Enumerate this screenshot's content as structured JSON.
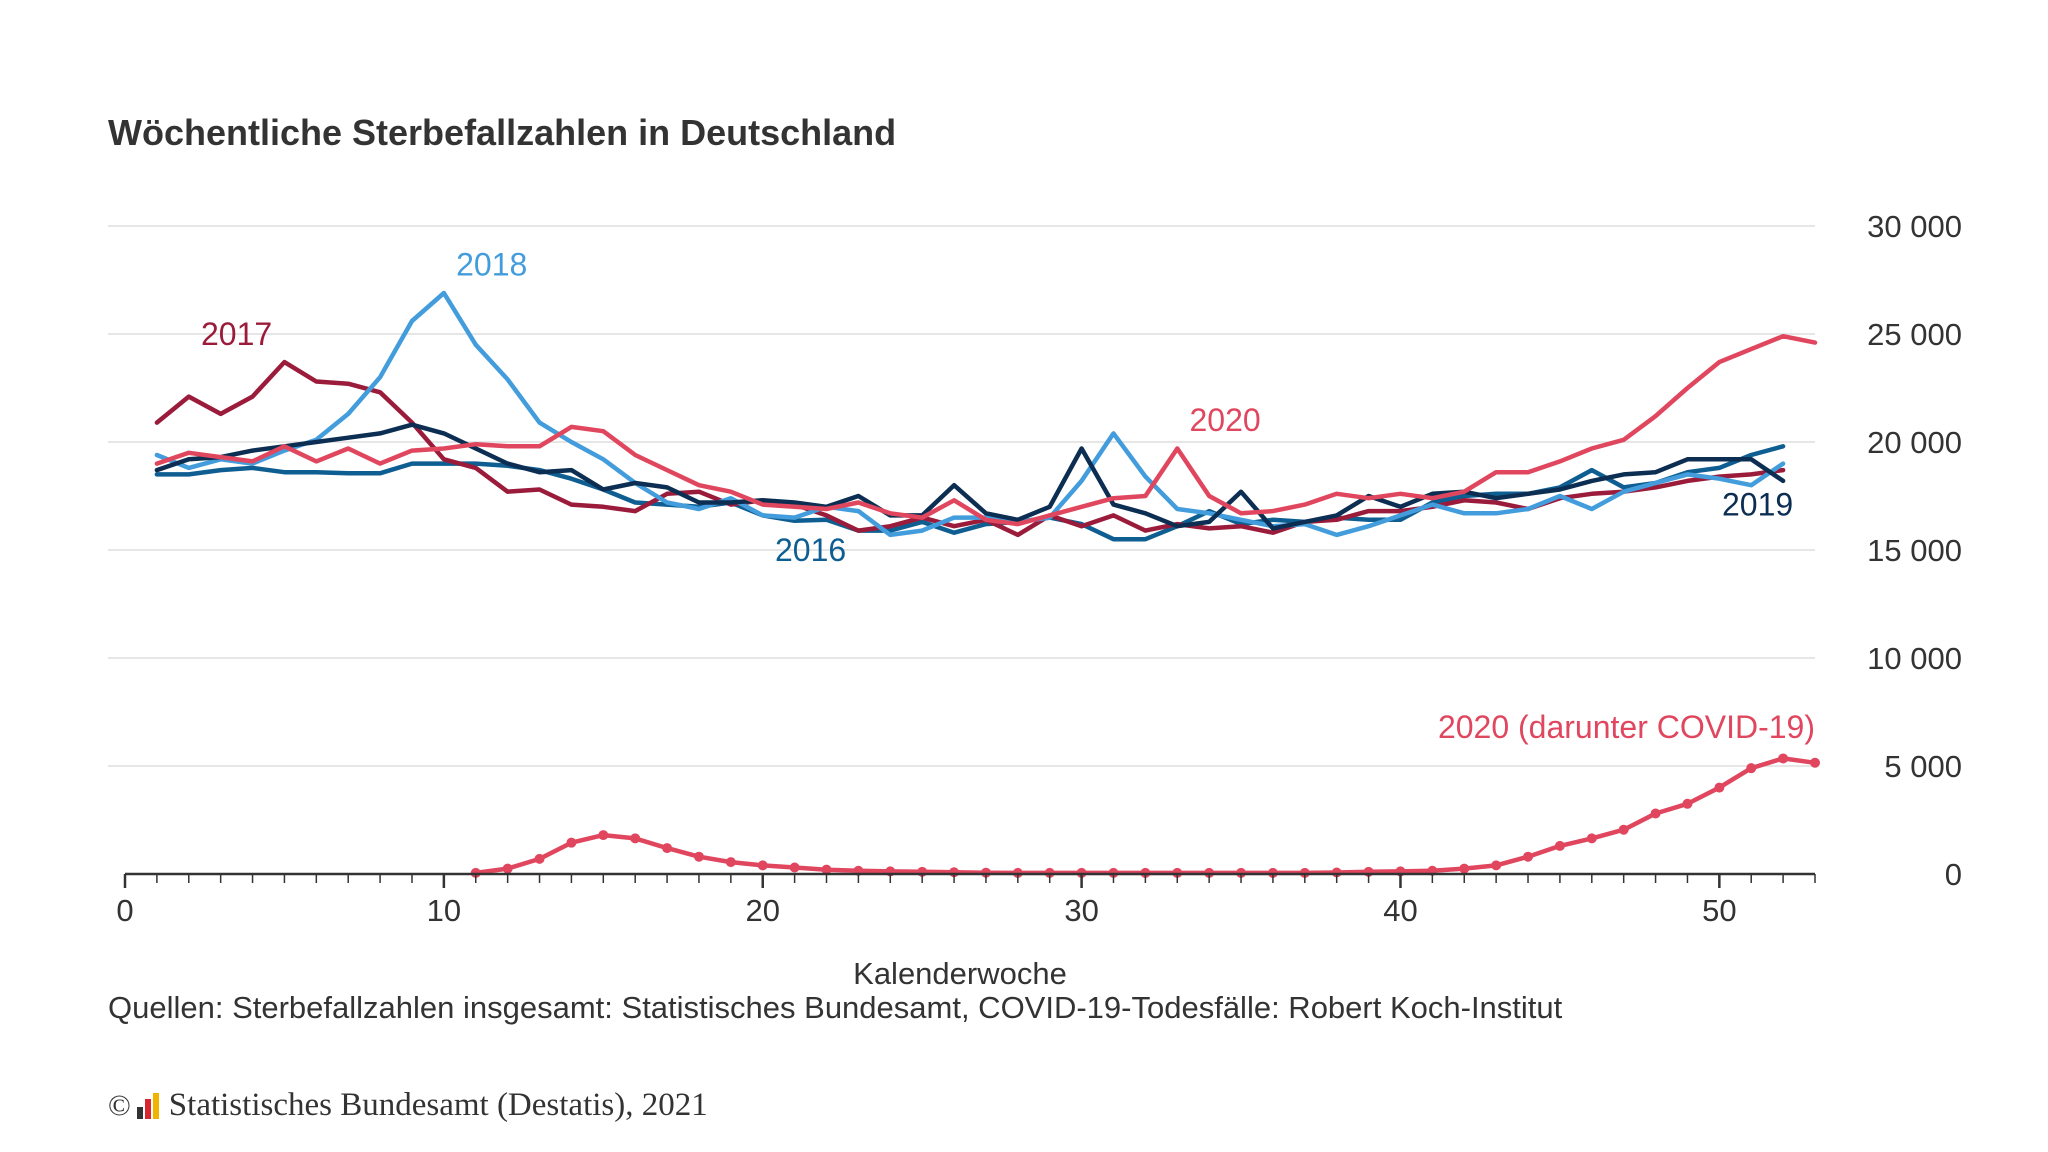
{
  "chart_data": {
    "type": "line",
    "title": "Wöchentliche Sterbefallzahlen in Deutschland",
    "xlabel": "Kalenderwoche",
    "ylabel": "",
    "xlim": [
      0,
      53
    ],
    "ylim": [
      0,
      30000
    ],
    "x_ticks": [
      {
        "value": 0,
        "label": "0"
      },
      {
        "value": 10,
        "label": "10"
      },
      {
        "value": 20,
        "label": "20"
      },
      {
        "value": 30,
        "label": "30"
      },
      {
        "value": 40,
        "label": "40"
      },
      {
        "value": 50,
        "label": "50"
      }
    ],
    "y_ticks": [
      {
        "value": 0,
        "label": "0"
      },
      {
        "value": 5000,
        "label": "5 000"
      },
      {
        "value": 10000,
        "label": "10 000"
      },
      {
        "value": 15000,
        "label": "15 000"
      },
      {
        "value": 20000,
        "label": "20 000"
      },
      {
        "value": 25000,
        "label": "25 000"
      },
      {
        "value": 30000,
        "label": "30 000"
      }
    ],
    "grid": true,
    "axis_color": "#333333",
    "grid_color": "#dddddd",
    "series": [
      {
        "name": "2016",
        "color": "#0f5e91",
        "label": {
          "x": 21.5,
          "y": 14500
        },
        "x": [
          1,
          2,
          3,
          4,
          5,
          6,
          7,
          8,
          9,
          10,
          11,
          12,
          13,
          14,
          15,
          16,
          17,
          18,
          19,
          20,
          21,
          22,
          23,
          24,
          25,
          26,
          27,
          28,
          29,
          30,
          31,
          32,
          33,
          34,
          35,
          36,
          37,
          38,
          39,
          40,
          41,
          42,
          43,
          44,
          45,
          46,
          47,
          48,
          49,
          50,
          51,
          52
        ],
        "values": [
          18500,
          18500,
          18700,
          18800,
          18600,
          18600,
          18550,
          18550,
          19000,
          19000,
          19000,
          18900,
          18700,
          18300,
          17800,
          17200,
          17100,
          17000,
          17200,
          16600,
          16350,
          16400,
          15900,
          15900,
          16300,
          15800,
          16200,
          16300,
          16500,
          16200,
          15500,
          15500,
          16100,
          16800,
          16200,
          16400,
          16300,
          16500,
          16400,
          16400,
          17200,
          17500,
          17600,
          17600,
          17900,
          18700,
          17900,
          18100,
          18600,
          18800,
          19400,
          19800
        ]
      },
      {
        "name": "2017",
        "color": "#9b1b3b",
        "label": {
          "x": 3.5,
          "y": 24500
        },
        "x": [
          1,
          2,
          3,
          4,
          5,
          6,
          7,
          8,
          9,
          10,
          11,
          12,
          13,
          14,
          15,
          16,
          17,
          18,
          19,
          20,
          21,
          22,
          23,
          24,
          25,
          26,
          27,
          28,
          29,
          30,
          31,
          32,
          33,
          34,
          35,
          36,
          37,
          38,
          39,
          40,
          41,
          42,
          43,
          44,
          45,
          46,
          47,
          48,
          49,
          50,
          51,
          52
        ],
        "values": [
          20900,
          22100,
          21300,
          22100,
          23700,
          22800,
          22700,
          22300,
          20900,
          19200,
          18800,
          17700,
          17800,
          17100,
          17000,
          16800,
          17600,
          17700,
          17100,
          17300,
          17100,
          16600,
          15900,
          16100,
          16500,
          16100,
          16400,
          15700,
          16600,
          16100,
          16600,
          15900,
          16200,
          16000,
          16100,
          15800,
          16300,
          16400,
          16800,
          16800,
          17000,
          17300,
          17200,
          16900,
          17400,
          17600,
          17700,
          17900,
          18200,
          18400,
          18500,
          18700
        ]
      },
      {
        "name": "2018",
        "color": "#439ddc",
        "label": {
          "x": 11.5,
          "y": 27700
        },
        "x": [
          1,
          2,
          3,
          4,
          5,
          6,
          7,
          8,
          9,
          10,
          11,
          12,
          13,
          14,
          15,
          16,
          17,
          18,
          19,
          20,
          21,
          22,
          23,
          24,
          25,
          26,
          27,
          28,
          29,
          30,
          31,
          32,
          33,
          34,
          35,
          36,
          37,
          38,
          39,
          40,
          41,
          42,
          43,
          44,
          45,
          46,
          47,
          48,
          49,
          50,
          51,
          52
        ],
        "values": [
          19400,
          18800,
          19200,
          19000,
          19600,
          20100,
          21300,
          23000,
          25600,
          26900,
          24500,
          22900,
          20900,
          20000,
          19200,
          18100,
          17200,
          16900,
          17400,
          16600,
          16500,
          17000,
          16800,
          15700,
          15900,
          16500,
          16500,
          16300,
          16500,
          18200,
          20400,
          18400,
          16900,
          16700,
          16400,
          16100,
          16200,
          15700,
          16100,
          16600,
          17100,
          16700,
          16700,
          16900,
          17500,
          16900,
          17700,
          18100,
          18500,
          18300,
          18000,
          19000
        ]
      },
      {
        "name": "2019",
        "color": "#0c2e52",
        "label": {
          "x": 51.2,
          "y": 16600
        },
        "x": [
          1,
          2,
          3,
          4,
          5,
          6,
          7,
          8,
          9,
          10,
          11,
          12,
          13,
          14,
          15,
          16,
          17,
          18,
          19,
          20,
          21,
          22,
          23,
          24,
          25,
          26,
          27,
          28,
          29,
          30,
          31,
          32,
          33,
          34,
          35,
          36,
          37,
          38,
          39,
          40,
          41,
          42,
          43,
          44,
          45,
          46,
          47,
          48,
          49,
          50,
          51,
          52
        ],
        "values": [
          18700,
          19200,
          19300,
          19600,
          19800,
          20000,
          20200,
          20400,
          20800,
          20400,
          19700,
          19000,
          18600,
          18700,
          17800,
          18100,
          17900,
          17200,
          17200,
          17300,
          17200,
          17000,
          17500,
          16600,
          16600,
          18000,
          16700,
          16400,
          17000,
          19700,
          17100,
          16700,
          16100,
          16300,
          17700,
          16000,
          16300,
          16600,
          17500,
          17000,
          17600,
          17700,
          17400,
          17600,
          17800,
          18200,
          18500,
          18600,
          19200,
          19200,
          19200,
          18200
        ]
      },
      {
        "name": "2020",
        "color": "#e0475f",
        "label": {
          "x": 34.5,
          "y": 20500
        },
        "x": [
          1,
          2,
          3,
          4,
          5,
          6,
          7,
          8,
          9,
          10,
          11,
          12,
          13,
          14,
          15,
          16,
          17,
          18,
          19,
          20,
          21,
          22,
          23,
          24,
          25,
          26,
          27,
          28,
          29,
          30,
          31,
          32,
          33,
          34,
          35,
          36,
          37,
          38,
          39,
          40,
          41,
          42,
          43,
          44,
          45,
          46,
          47,
          48,
          49,
          50,
          51,
          52,
          53
        ],
        "values": [
          19000,
          19500,
          19300,
          19100,
          19800,
          19100,
          19700,
          19000,
          19600,
          19700,
          19900,
          19800,
          19800,
          20700,
          20500,
          19400,
          18700,
          18000,
          17700,
          17100,
          17000,
          16900,
          17200,
          16700,
          16500,
          17300,
          16400,
          16200,
          16600,
          17000,
          17400,
          17500,
          19700,
          17500,
          16700,
          16800,
          17100,
          17600,
          17400,
          17600,
          17400,
          17700,
          18600,
          18600,
          19100,
          19700,
          20100,
          21200,
          22500,
          23700,
          24300,
          24900,
          24600
        ]
      },
      {
        "name": "2020 (darunter COVID-19)",
        "color": "#e0475f",
        "markers": true,
        "label": {
          "x": 53,
          "y": 6300,
          "anchor": "end"
        },
        "x": [
          11,
          12,
          13,
          14,
          15,
          16,
          17,
          18,
          19,
          20,
          21,
          22,
          23,
          24,
          25,
          26,
          27,
          28,
          29,
          30,
          31,
          32,
          33,
          34,
          35,
          36,
          37,
          38,
          39,
          40,
          41,
          42,
          43,
          44,
          45,
          46,
          47,
          48,
          49,
          50,
          51,
          52,
          53
        ],
        "values": [
          50,
          250,
          700,
          1450,
          1800,
          1650,
          1200,
          800,
          550,
          400,
          300,
          200,
          150,
          120,
          100,
          80,
          60,
          50,
          50,
          50,
          50,
          50,
          50,
          50,
          50,
          50,
          50,
          70,
          100,
          120,
          150,
          250,
          400,
          800,
          1300,
          1650,
          2050,
          2800,
          3250,
          4000,
          4900,
          5350,
          5150
        ]
      }
    ]
  },
  "source": "Quellen: Sterbefallzahlen insgesamt: Statistisches Bundesamt, COVID-19-Todesfälle: Robert Koch-Institut",
  "copyright": {
    "symbol": "©",
    "text": "Statistisches Bundesamt (Destatis), 2021",
    "logo_colors": [
      "#333333",
      "#d7262f",
      "#f0b400"
    ]
  }
}
